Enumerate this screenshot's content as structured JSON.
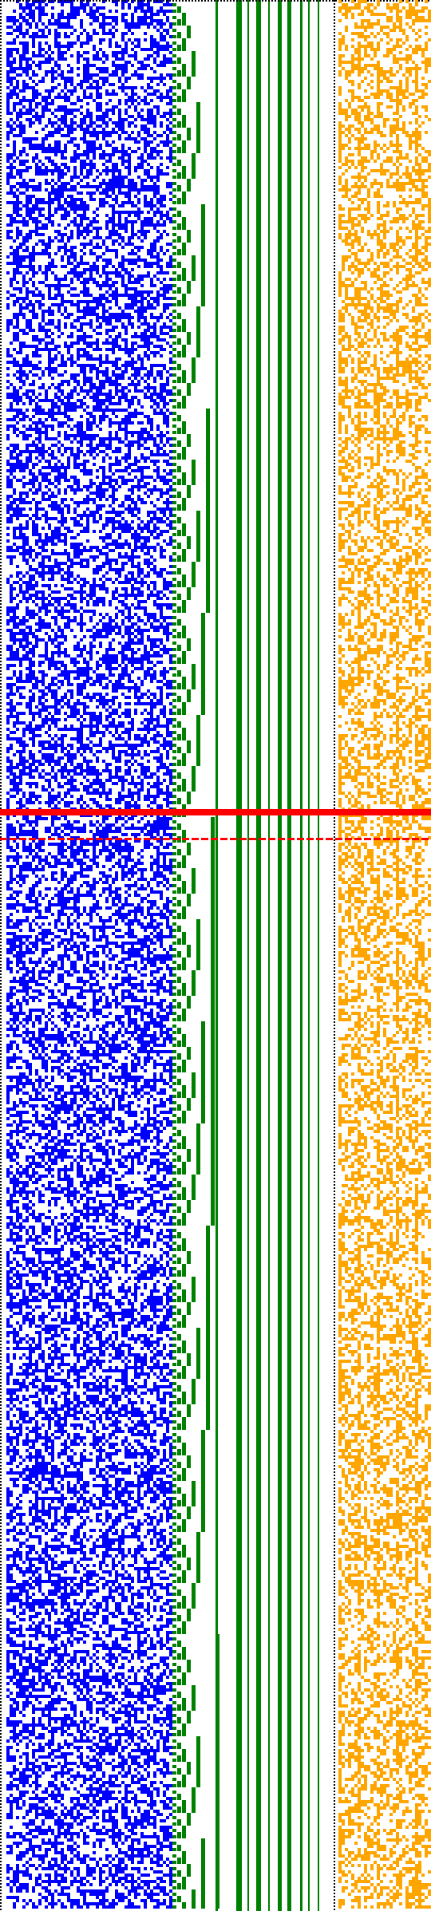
{
  "colors": {
    "background": "#ffffff",
    "border_dots": "#000000",
    "blue_matrix": "#0000ff",
    "green_steps": "#008000",
    "green_bars": "#008000",
    "orange_matrix": "#ffa500",
    "red_lines": "#ff0000"
  },
  "panels": [
    {
      "id": "blue-random-matrix",
      "color_key": "blue_matrix",
      "fill_density": 0.5
    },
    {
      "id": "green-staircase-bits",
      "color_key": "green_steps"
    },
    {
      "id": "green-vertical-bars",
      "color_key": "green_bars"
    },
    {
      "id": "orange-random-matrix",
      "color_key": "orange_matrix",
      "fill_density": 0.4
    }
  ],
  "highlights": [
    {
      "id": "red-highlight-band",
      "style": "solid",
      "color_key": "red_lines"
    },
    {
      "id": "red-highlight-dashed",
      "style": "dashed",
      "color_key": "red_lines"
    }
  ]
}
